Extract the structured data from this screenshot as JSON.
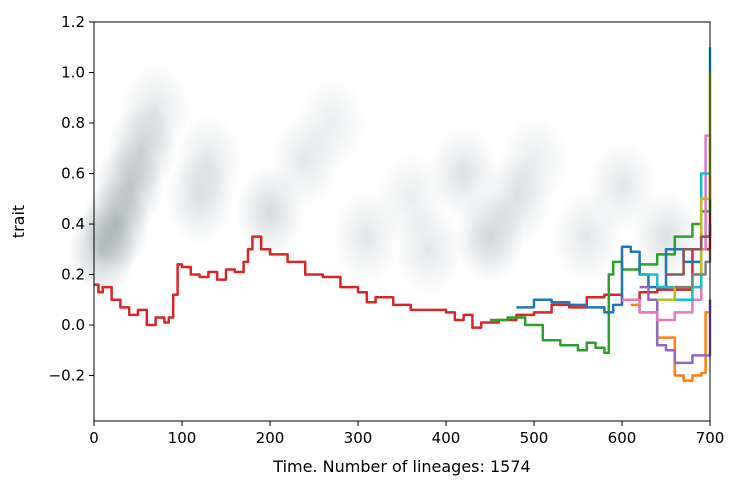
{
  "chart_data": {
    "type": "line",
    "title": "",
    "xlabel": "Time. Number of lineages: 1574",
    "ylabel": "trait",
    "xlim": [
      0,
      700
    ],
    "ylim": [
      -0.38,
      1.2
    ],
    "xticks": [
      0,
      100,
      200,
      300,
      400,
      500,
      600,
      700
    ],
    "xtick_labels": [
      "0",
      "100",
      "200",
      "300",
      "400",
      "500",
      "600",
      "700"
    ],
    "yticks": [
      -0.2,
      0.0,
      0.2,
      0.4,
      0.6,
      0.8,
      1.0,
      1.2
    ],
    "ytick_labels": [
      "−0.2",
      "0.0",
      "0.2",
      "0.4",
      "0.6",
      "0.8",
      "1.0",
      "1.2"
    ],
    "grid": false,
    "background_density": {
      "type": "heatmap",
      "color": "#2f4858",
      "description_points": [
        {
          "x": 10,
          "y": 0.3,
          "weight": 0.9
        },
        {
          "x": 25,
          "y": 0.4,
          "weight": 1.0
        },
        {
          "x": 40,
          "y": 0.55,
          "weight": 0.9
        },
        {
          "x": 55,
          "y": 0.7,
          "weight": 0.7
        },
        {
          "x": 70,
          "y": 0.85,
          "weight": 0.4
        },
        {
          "x": 120,
          "y": 0.5,
          "weight": 0.5
        },
        {
          "x": 130,
          "y": 0.65,
          "weight": 0.4
        },
        {
          "x": 200,
          "y": 0.45,
          "weight": 0.6
        },
        {
          "x": 240,
          "y": 0.65,
          "weight": 0.4
        },
        {
          "x": 270,
          "y": 0.8,
          "weight": 0.3
        },
        {
          "x": 310,
          "y": 0.35,
          "weight": 0.4
        },
        {
          "x": 360,
          "y": 0.5,
          "weight": 0.3
        },
        {
          "x": 380,
          "y": 0.3,
          "weight": 0.4
        },
        {
          "x": 420,
          "y": 0.6,
          "weight": 0.5
        },
        {
          "x": 450,
          "y": 0.35,
          "weight": 0.7
        },
        {
          "x": 480,
          "y": 0.5,
          "weight": 0.5
        },
        {
          "x": 500,
          "y": 0.65,
          "weight": 0.3
        },
        {
          "x": 560,
          "y": 0.35,
          "weight": 0.4
        },
        {
          "x": 600,
          "y": 0.55,
          "weight": 0.4
        },
        {
          "x": 650,
          "y": 0.35,
          "weight": 0.5
        }
      ]
    },
    "series": [
      {
        "color": "#d62728",
        "x": [
          0,
          5,
          10,
          20,
          30,
          40,
          50,
          60,
          70,
          80,
          85,
          90,
          95,
          100,
          110,
          120,
          130,
          140,
          150,
          160,
          170,
          175,
          180,
          190,
          200,
          220,
          240,
          260,
          280,
          300,
          310,
          320,
          340,
          360,
          380,
          400,
          410,
          420,
          430,
          440,
          460,
          480,
          500,
          520,
          540,
          560,
          580,
          600,
          620,
          640,
          660,
          680,
          700
        ],
        "y": [
          0.16,
          0.13,
          0.15,
          0.1,
          0.07,
          0.04,
          0.06,
          0.0,
          0.03,
          0.01,
          0.03,
          0.12,
          0.24,
          0.23,
          0.2,
          0.19,
          0.21,
          0.18,
          0.22,
          0.21,
          0.25,
          0.3,
          0.35,
          0.3,
          0.28,
          0.25,
          0.2,
          0.19,
          0.15,
          0.13,
          0.09,
          0.11,
          0.08,
          0.06,
          0.06,
          0.05,
          0.02,
          0.04,
          -0.01,
          0.01,
          0.02,
          0.04,
          0.05,
          0.08,
          0.07,
          0.11,
          0.12,
          0.1,
          0.13,
          0.14,
          0.14,
          0.3,
          0.6
        ]
      },
      {
        "color": "#2ca02c",
        "x": [
          450,
          470,
          490,
          510,
          530,
          550,
          560,
          570,
          580,
          585,
          590,
          600,
          620,
          640,
          660,
          680,
          690,
          700
        ],
        "y": [
          0.02,
          0.03,
          0.0,
          -0.06,
          -0.08,
          -0.1,
          -0.07,
          -0.09,
          -0.11,
          0.2,
          0.25,
          0.22,
          0.24,
          0.28,
          0.35,
          0.4,
          0.45,
          0.5
        ]
      },
      {
        "color": "#1f77b4",
        "x": [
          480,
          500,
          520,
          540,
          560,
          580,
          590,
          600,
          610,
          620,
          630,
          650,
          670,
          690,
          700
        ],
        "y": [
          0.07,
          0.1,
          0.09,
          0.08,
          0.07,
          0.05,
          0.08,
          0.31,
          0.29,
          0.2,
          0.15,
          0.3,
          0.25,
          0.35,
          0.4
        ]
      },
      {
        "color": "#ff7f0e",
        "x": [
          610,
          620,
          640,
          660,
          670,
          680,
          690,
          695,
          700
        ],
        "y": [
          0.08,
          0.05,
          -0.05,
          -0.2,
          -0.22,
          -0.2,
          -0.19,
          0.05,
          0.1
        ]
      },
      {
        "color": "#9467bd",
        "x": [
          620,
          630,
          640,
          650,
          660,
          680,
          700
        ],
        "y": [
          0.15,
          0.1,
          -0.08,
          -0.1,
          -0.15,
          -0.12,
          0.1
        ]
      },
      {
        "color": "#e377c2",
        "x": [
          600,
          620,
          640,
          660,
          680,
          690,
          695,
          700
        ],
        "y": [
          0.1,
          0.05,
          0.02,
          0.05,
          0.1,
          0.3,
          0.75,
          0.68
        ]
      },
      {
        "color": "#17becf",
        "x": [
          620,
          640,
          660,
          680,
          690,
          700
        ],
        "y": [
          0.2,
          0.15,
          0.1,
          0.15,
          0.6,
          1.1
        ]
      },
      {
        "color": "#bcbd22",
        "x": [
          640,
          660,
          680,
          690,
          700
        ],
        "y": [
          0.1,
          0.15,
          0.2,
          0.5,
          1.0
        ]
      },
      {
        "color": "#8c564b",
        "x": [
          650,
          670,
          690,
          700
        ],
        "y": [
          0.2,
          0.3,
          0.35,
          0.4
        ]
      },
      {
        "color": "#7f7f7f",
        "x": [
          660,
          680,
          695,
          700
        ],
        "y": [
          0.15,
          0.2,
          0.25,
          0.3
        ]
      }
    ]
  }
}
